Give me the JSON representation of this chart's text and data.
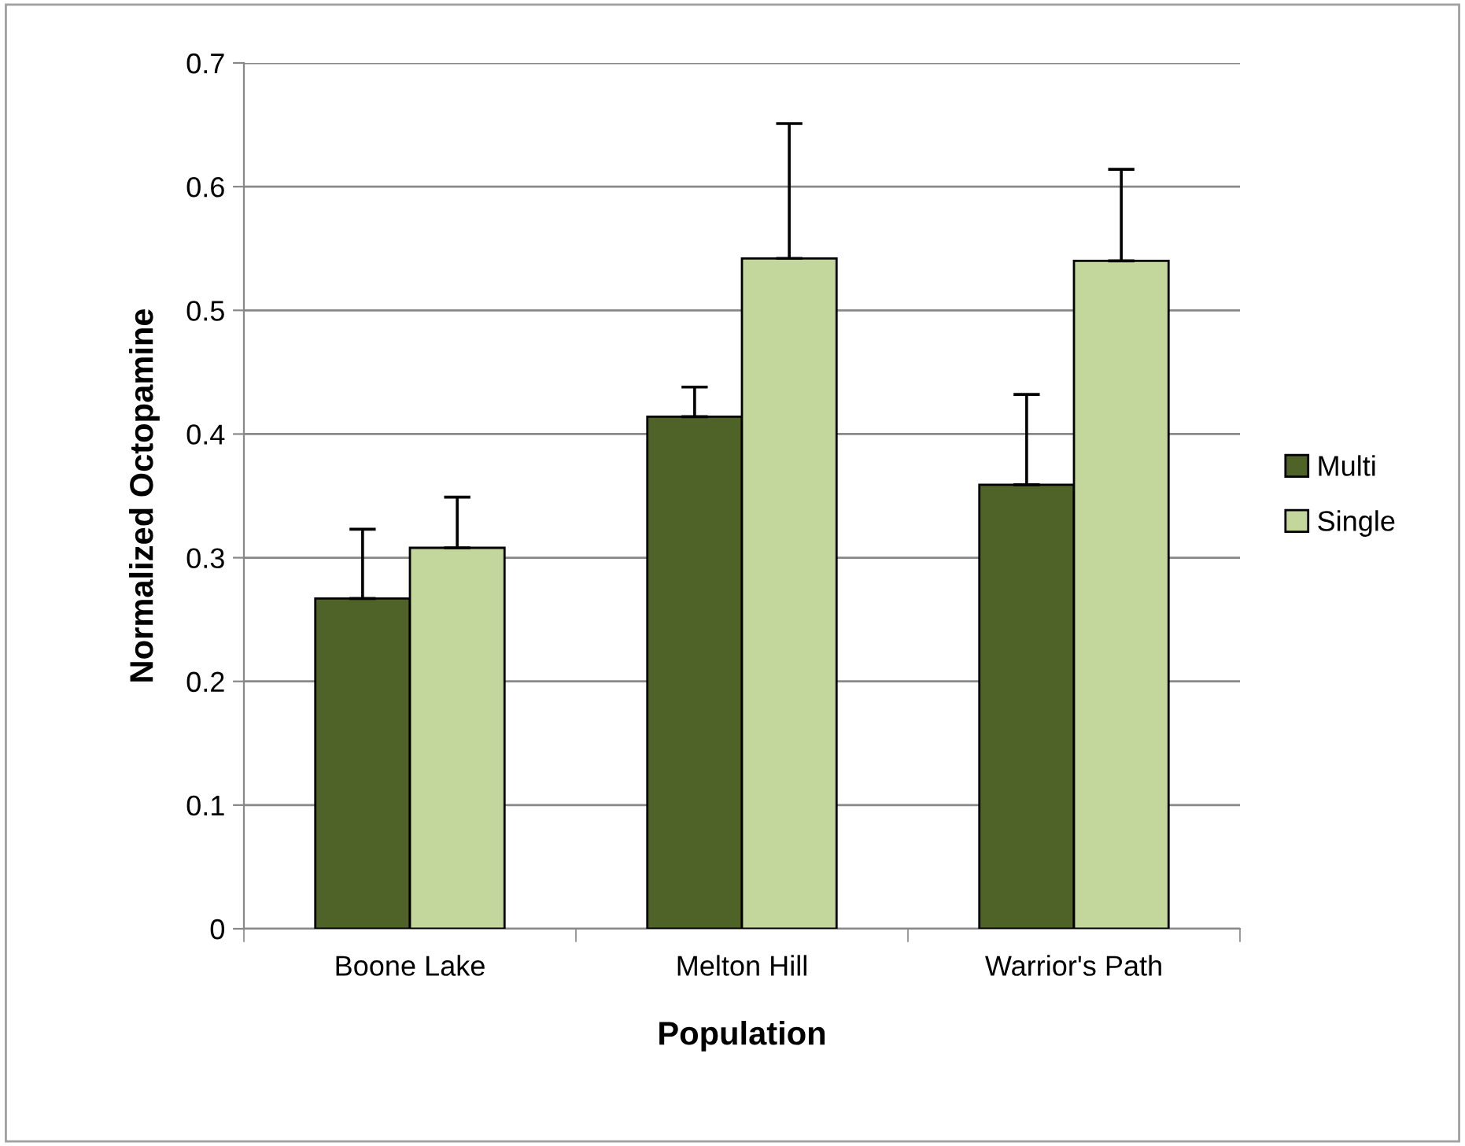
{
  "chart_data": {
    "type": "bar",
    "xlabel": "Population",
    "ylabel": "Normalized Octopamine",
    "categories": [
      "Boone Lake",
      "Melton Hill",
      "Warrior's Path"
    ],
    "series": [
      {
        "name": "Multi",
        "color": "#4f6228",
        "values": [
          0.267,
          0.414,
          0.359
        ],
        "errors": [
          [
            0.267,
            0.323
          ],
          [
            0.414,
            0.438
          ],
          [
            0.359,
            0.432
          ]
        ]
      },
      {
        "name": "Single",
        "color": "#c3d69b",
        "values": [
          0.308,
          0.542,
          0.54
        ],
        "errors": [
          [
            0.308,
            0.349
          ],
          [
            0.542,
            0.651
          ],
          [
            0.54,
            0.614
          ]
        ]
      }
    ],
    "ylim": [
      0,
      0.7
    ],
    "yticks": [
      0,
      0.1,
      0.2,
      0.3,
      0.4,
      0.5,
      0.6,
      0.7
    ],
    "grid": "y",
    "legend": "right"
  }
}
